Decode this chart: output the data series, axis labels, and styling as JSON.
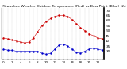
{
  "title": "Milwaukee Weather Outdoor Temperature (Red) vs Dew Point (Blue) (24 Hours)",
  "title_fontsize": 3.2,
  "background_color": "#ffffff",
  "plot_bg_color": "#ffffff",
  "grid_color": "#999999",
  "temp_color": "#cc0000",
  "dew_color": "#0000cc",
  "ylim": [
    22,
    72
  ],
  "xlim": [
    -0.5,
    23.5
  ],
  "ytick_values": [
    30,
    35,
    40,
    45,
    50,
    55,
    60,
    65,
    70
  ],
  "ytick_labels": [
    "30",
    "35",
    "40",
    "45",
    "50",
    "55",
    "60",
    "65",
    "70"
  ],
  "xticks": [
    0,
    1,
    2,
    3,
    4,
    5,
    6,
    7,
    8,
    9,
    10,
    11,
    12,
    13,
    14,
    15,
    16,
    17,
    18,
    19,
    20,
    21,
    22,
    23
  ],
  "temp_x": [
    0,
    1,
    2,
    3,
    4,
    5,
    6,
    7,
    8,
    9,
    10,
    11,
    12,
    13,
    14,
    15,
    16,
    17,
    18,
    19,
    20,
    21,
    22,
    23
  ],
  "temp_y": [
    43,
    42,
    41,
    40,
    39,
    38,
    39,
    43,
    49,
    55,
    59,
    62,
    64,
    65,
    65,
    64,
    61,
    57,
    53,
    50,
    47,
    45,
    43,
    42
  ],
  "dew_x": [
    0,
    1,
    2,
    3,
    4,
    5,
    6,
    7,
    8,
    9,
    10,
    11,
    12,
    13,
    14,
    15,
    16,
    17,
    18,
    19,
    20,
    21,
    22,
    23
  ],
  "dew_y": [
    32,
    31,
    31,
    30,
    30,
    30,
    30,
    30,
    30,
    28,
    27,
    28,
    32,
    36,
    37,
    35,
    32,
    29,
    28,
    30,
    32,
    33,
    32,
    31
  ],
  "marker_size": 1.5,
  "tick_fontsize": 3.0,
  "linewidth": 0.4
}
